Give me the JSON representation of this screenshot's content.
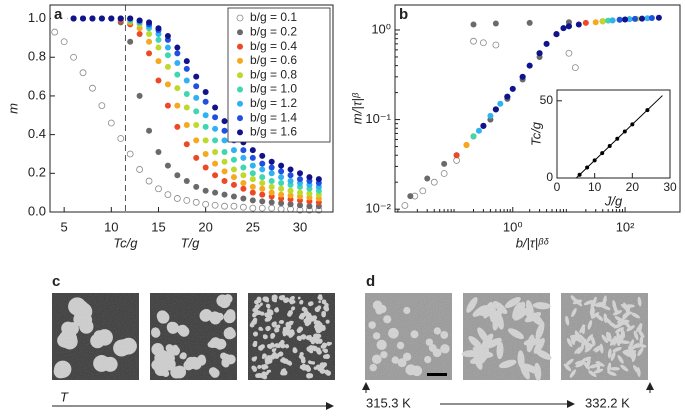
{
  "chart_data": [
    {
      "type": "scatter",
      "panel": "a",
      "xlabel": "T/g",
      "ylabel": "m",
      "vline": 11.5,
      "vline_label": "Tc/g",
      "xlim": [
        3.5,
        33.5
      ],
      "ylim": [
        0,
        1.07
      ],
      "xticks": [
        5,
        10,
        15,
        20,
        25,
        30
      ],
      "yticks": [
        {
          "value": 0,
          "label": "0.0"
        },
        0.2,
        0.4,
        0.6,
        0.8,
        {
          "value": 1,
          "label": "1.0"
        }
      ],
      "x": [
        4,
        5,
        6,
        7,
        8,
        9,
        10,
        11,
        12,
        13,
        14,
        15,
        16,
        17,
        18,
        19,
        20,
        21,
        22,
        23,
        24,
        25,
        26,
        27,
        28,
        29,
        30,
        31,
        32
      ],
      "series": [
        {
          "name": "b/g = 0.1",
          "color": "#8a8a8a",
          "open": true,
          "values": [
            0.93,
            0.88,
            0.8,
            0.72,
            0.64,
            0.55,
            0.46,
            0.38,
            0.3,
            0.22,
            0.16,
            0.12,
            0.09,
            0.07,
            0.06,
            0.05,
            0.04,
            0.035,
            0.03,
            0.03,
            0.025,
            0.02,
            0.02,
            0.02,
            0.015,
            0.015,
            0.01,
            0.01,
            0.01
          ]
        },
        {
          "name": "b/g = 0.2",
          "color": "#6a6a6a",
          "values": [
            1,
            1,
            1,
            1,
            1,
            1,
            1,
            0.98,
            0.88,
            0.6,
            0.42,
            0.31,
            0.24,
            0.19,
            0.16,
            0.13,
            0.11,
            0.1,
            0.09,
            0.08,
            0.07,
            0.06,
            0.055,
            0.05,
            0.045,
            0.04,
            0.035,
            0.03,
            0.03
          ]
        },
        {
          "name": "b/g = 0.4",
          "color": "#ec4a26",
          "values": [
            1,
            1,
            1,
            1,
            1,
            1,
            1,
            0.99,
            0.97,
            0.92,
            0.82,
            0.68,
            0.55,
            0.44,
            0.35,
            0.28,
            0.23,
            0.19,
            0.16,
            0.14,
            0.12,
            0.1,
            0.09,
            0.08,
            0.07,
            0.065,
            0.06,
            0.055,
            0.05
          ]
        },
        {
          "name": "b/g = 0.6",
          "color": "#f6a81e",
          "values": [
            1,
            1,
            1,
            1,
            1,
            1,
            1,
            1,
            0.98,
            0.95,
            0.88,
            0.78,
            0.66,
            0.55,
            0.45,
            0.37,
            0.3,
            0.25,
            0.21,
            0.18,
            0.15,
            0.13,
            0.12,
            0.1,
            0.09,
            0.085,
            0.08,
            0.075,
            0.07
          ]
        },
        {
          "name": "b/g = 0.8",
          "color": "#bcd92c",
          "values": [
            1,
            1,
            1,
            1,
            1,
            1,
            1,
            1,
            0.99,
            0.97,
            0.92,
            0.85,
            0.75,
            0.64,
            0.54,
            0.45,
            0.37,
            0.31,
            0.26,
            0.22,
            0.19,
            0.17,
            0.15,
            0.13,
            0.12,
            0.11,
            0.1,
            0.095,
            0.09
          ]
        },
        {
          "name": "b/g = 1.0",
          "color": "#3fd6b0",
          "values": [
            1,
            1,
            1,
            1,
            1,
            1,
            1,
            1,
            0.99,
            0.98,
            0.95,
            0.89,
            0.81,
            0.71,
            0.61,
            0.52,
            0.44,
            0.37,
            0.31,
            0.27,
            0.23,
            0.2,
            0.18,
            0.16,
            0.15,
            0.14,
            0.13,
            0.12,
            0.11
          ]
        },
        {
          "name": "b/g = 1.2",
          "color": "#2fb2f2",
          "values": [
            1,
            1,
            1,
            1,
            1,
            1,
            1,
            1,
            1,
            0.98,
            0.96,
            0.92,
            0.85,
            0.77,
            0.68,
            0.59,
            0.5,
            0.43,
            0.37,
            0.32,
            0.28,
            0.24,
            0.22,
            0.2,
            0.18,
            0.16,
            0.15,
            0.14,
            0.13
          ]
        },
        {
          "name": "b/g = 1.4",
          "color": "#2150e0",
          "values": [
            1,
            1,
            1,
            1,
            1,
            1,
            1,
            1,
            1,
            0.99,
            0.97,
            0.94,
            0.89,
            0.82,
            0.74,
            0.65,
            0.57,
            0.49,
            0.42,
            0.37,
            0.32,
            0.28,
            0.25,
            0.23,
            0.21,
            0.19,
            0.17,
            0.16,
            0.15
          ]
        },
        {
          "name": "b/g = 1.6",
          "color": "#12128c",
          "values": [
            1,
            1,
            1,
            1,
            1,
            1,
            1,
            1,
            1,
            0.99,
            0.98,
            0.95,
            0.91,
            0.85,
            0.78,
            0.7,
            0.62,
            0.54,
            0.47,
            0.41,
            0.36,
            0.32,
            0.29,
            0.26,
            0.24,
            0.22,
            0.2,
            0.18,
            0.17
          ]
        }
      ]
    },
    {
      "type": "scatter",
      "panel": "b",
      "xlabel": "b/|τ|ᵝᵟ",
      "ylabel": "m/|τ|ᵝ",
      "xscale": "log",
      "yscale": "log",
      "xlim": [
        0.008,
        950
      ],
      "ylim": [
        0.0093,
        1.9
      ],
      "xticks": [
        {
          "value": 1,
          "label": "10⁰"
        },
        {
          "value": 100,
          "label": "10²"
        }
      ],
      "yticks": [
        {
          "value": 0.01,
          "label": "10⁻²"
        },
        {
          "value": 0.1,
          "label": "10⁻¹"
        },
        {
          "value": 1,
          "label": "10⁰"
        }
      ],
      "series": [
        {
          "color": "#8a8a8a",
          "open": true,
          "x": [
            0.012,
            0.018,
            0.025,
            0.04,
            0.06,
            0.1,
            0.2,
            0.3,
            0.5,
            10,
            13
          ],
          "values": [
            0.011,
            0.014,
            0.016,
            0.02,
            0.025,
            0.035,
            0.75,
            0.72,
            0.68,
            0.55,
            0.38
          ]
        },
        {
          "color": "#6a6a6a",
          "x": [
            0.015,
            0.03,
            0.06,
            0.1,
            0.2,
            0.4,
            0.8,
            1.5,
            3,
            0.2,
            0.5,
            2,
            10,
            40
          ],
          "values": [
            0.014,
            0.022,
            0.032,
            0.04,
            0.065,
            0.1,
            0.17,
            0.28,
            0.5,
            1.15,
            1.18,
            1.2,
            1.22,
            1.25
          ]
        },
        {
          "color": "#ec4a26",
          "x": [
            0.1,
            0.15,
            0.2,
            0.3,
            0.5,
            0.8,
            1.5,
            3,
            6,
            20,
            40,
            80
          ],
          "values": [
            0.04,
            0.052,
            0.065,
            0.085,
            0.13,
            0.18,
            0.3,
            0.55,
            0.9,
            1.2,
            1.25,
            1.3
          ]
        },
        {
          "color": "#f6a81e",
          "x": [
            0.15,
            0.2,
            0.3,
            0.5,
            0.8,
            1.5,
            3,
            6,
            30,
            60,
            120
          ],
          "values": [
            0.052,
            0.065,
            0.085,
            0.13,
            0.18,
            0.3,
            0.55,
            0.9,
            1.22,
            1.28,
            1.32
          ]
        },
        {
          "color": "#bcd92c",
          "x": [
            0.2,
            0.3,
            0.5,
            0.8,
            1.5,
            3,
            6,
            40,
            80,
            160
          ],
          "values": [
            0.065,
            0.085,
            0.13,
            0.18,
            0.3,
            0.55,
            0.9,
            1.25,
            1.3,
            1.33
          ]
        },
        {
          "color": "#3fd6b0",
          "x": [
            0.2,
            0.3,
            0.5,
            0.8,
            1.5,
            3,
            6,
            10,
            50,
            100,
            200
          ],
          "values": [
            0.065,
            0.085,
            0.13,
            0.18,
            0.3,
            0.55,
            0.9,
            1.1,
            1.27,
            1.31,
            1.34
          ]
        },
        {
          "color": "#2fb2f2",
          "x": [
            0.25,
            0.4,
            0.6,
            1,
            2,
            4,
            8,
            60,
            120,
            250
          ],
          "values": [
            0.075,
            0.11,
            0.15,
            0.22,
            0.4,
            0.7,
            1.05,
            1.28,
            1.32,
            1.35
          ]
        },
        {
          "color": "#2150e0",
          "x": [
            0.3,
            0.5,
            0.8,
            1.5,
            3,
            6,
            10,
            80,
            150,
            300
          ],
          "values": [
            0.085,
            0.13,
            0.18,
            0.3,
            0.55,
            0.9,
            1.1,
            1.3,
            1.33,
            1.36
          ]
        },
        {
          "color": "#12128c",
          "x": [
            0.3,
            0.5,
            0.8,
            1,
            1.5,
            2,
            3,
            4,
            6,
            8,
            10,
            15,
            100,
            200,
            400
          ],
          "values": [
            0.085,
            0.13,
            0.18,
            0.22,
            0.3,
            0.4,
            0.55,
            0.7,
            0.9,
            1.05,
            1.1,
            1.15,
            1.31,
            1.34,
            1.37
          ]
        }
      ]
    },
    {
      "type": "scatter",
      "panel": "inset",
      "xlabel": "J/g",
      "ylabel": "Tc/g",
      "xlim": [
        0,
        30
      ],
      "ylim": [
        0,
        57
      ],
      "xticks": [
        0,
        10,
        20,
        30
      ],
      "yticks": [
        0,
        50
      ],
      "series": [
        {
          "color": "#000000",
          "x": [
            6,
            8,
            10,
            12,
            14,
            16,
            18,
            20,
            24
          ],
          "values": [
            2.1,
            6.8,
            11.4,
            16.1,
            20.7,
            25.4,
            30.1,
            34.7,
            44
          ]
        }
      ],
      "fit": {
        "x": [
          5.1,
          28
        ],
        "y": [
          0,
          53.4
        ]
      }
    }
  ],
  "images": {
    "c": {
      "label": "c",
      "axis_label": "T"
    },
    "d": {
      "label": "d",
      "start_label": "315.3 K",
      "end_label": "332.2 K"
    }
  }
}
